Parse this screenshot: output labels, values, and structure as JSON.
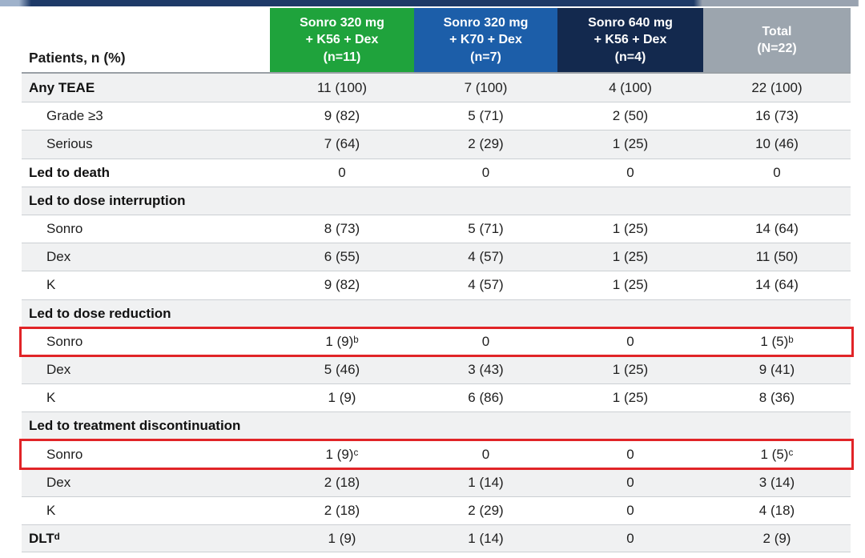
{
  "accent_colors": {
    "header_green": "#1fa33c",
    "header_blue": "#1c5ea9",
    "header_navy": "#13294e",
    "header_gray": "#9ca5ae",
    "highlight_red": "#e12427",
    "stripe_gray": "#f0f1f2",
    "top_bar_navy": "#1e3a68"
  },
  "table": {
    "corner_label": "Patients, n (%)",
    "columns": [
      {
        "title": "Sonro 320 mg\n+ K56 + Dex\n(n=11)",
        "color": "#1fa33c"
      },
      {
        "title": "Sonro 320 mg\n+ K70 + Dex\n(n=7)",
        "color": "#1c5ea9"
      },
      {
        "title": "Sonro 640 mg\n+ K56 + Dex\n(n=4)",
        "color": "#13294e"
      },
      {
        "title": "Total\n(N=22)",
        "color": "#9ca5ae"
      }
    ],
    "rows": [
      {
        "style": "bold",
        "label": "Any TEAE",
        "values": [
          "11 (100)",
          "7 (100)",
          "4 (100)",
          "22 (100)"
        ]
      },
      {
        "style": "sub",
        "label": "Grade ≥3",
        "values": [
          "9 (82)",
          "5 (71)",
          "2 (50)",
          "16 (73)"
        ]
      },
      {
        "style": "sub",
        "label": "Serious",
        "values": [
          "7 (64)",
          "2 (29)",
          "1 (25)",
          "10 (46)"
        ]
      },
      {
        "style": "bold",
        "label": "Led to death",
        "values": [
          "0",
          "0",
          "0",
          "0"
        ]
      },
      {
        "style": "section",
        "label": "Led to dose interruption",
        "values": [
          "",
          "",
          "",
          ""
        ]
      },
      {
        "style": "sub",
        "label": "Sonro",
        "values": [
          "8 (73)",
          "5 (71)",
          "1 (25)",
          "14 (64)"
        ]
      },
      {
        "style": "sub",
        "label": "Dex",
        "values": [
          "6 (55)",
          "4 (57)",
          "1 (25)",
          "11 (50)"
        ]
      },
      {
        "style": "sub",
        "label": "K",
        "values": [
          "9 (82)",
          "4 (57)",
          "1 (25)",
          "14 (64)"
        ]
      },
      {
        "style": "section",
        "label": "Led to dose reduction",
        "values": [
          "",
          "",
          "",
          ""
        ]
      },
      {
        "style": "sub",
        "label": "Sonro",
        "highlighted": true,
        "values": [
          "1 (9)ᵇ",
          "0",
          "0",
          "1 (5)ᵇ"
        ]
      },
      {
        "style": "sub",
        "label": "Dex",
        "values": [
          "5 (46)",
          "3 (43)",
          "1 (25)",
          "9 (41)"
        ]
      },
      {
        "style": "sub",
        "label": "K",
        "values": [
          "1 (9)",
          "6 (86)",
          "1 (25)",
          "8 (36)"
        ]
      },
      {
        "style": "section",
        "label": "Led to treatment discontinuation",
        "values": [
          "",
          "",
          "",
          ""
        ]
      },
      {
        "style": "sub",
        "label": "Sonro",
        "highlighted": true,
        "values": [
          "1 (9)ᶜ",
          "0",
          "0",
          "1 (5)ᶜ"
        ]
      },
      {
        "style": "sub",
        "label": "Dex",
        "values": [
          "2 (18)",
          "1 (14)",
          "0",
          "3 (14)"
        ]
      },
      {
        "style": "sub",
        "label": "K",
        "values": [
          "2 (18)",
          "2 (29)",
          "0",
          "4 (18)"
        ]
      },
      {
        "style": "bold",
        "label": "DLTᵈ",
        "values": [
          "1 (9)",
          "1 (14)",
          "0",
          "2 (9)"
        ]
      }
    ]
  }
}
